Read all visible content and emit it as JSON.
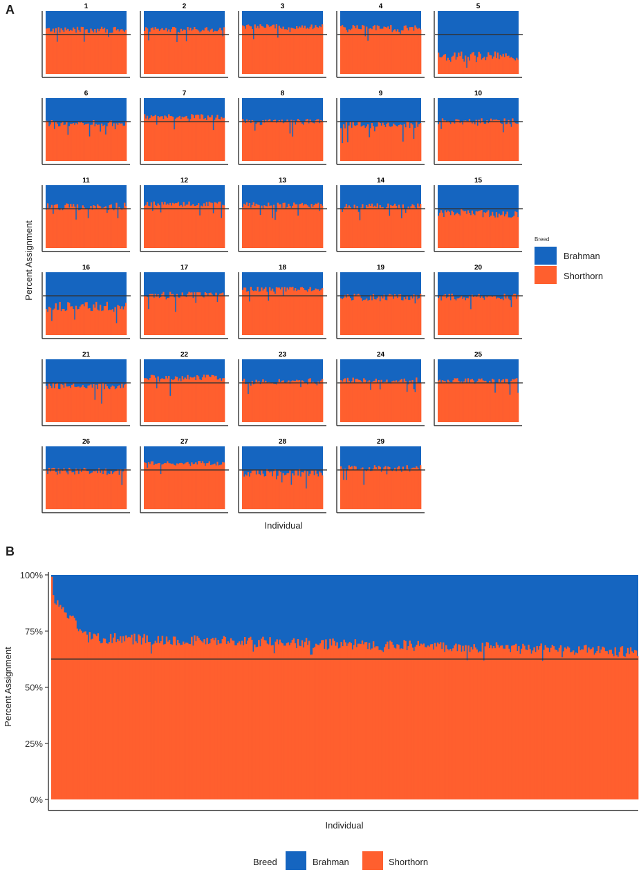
{
  "colors": {
    "brahman": "#1565C0",
    "shorthorn": "#FF5F2E",
    "ref_line": "#333333",
    "axis": "#333333"
  },
  "chart_data": [
    {
      "panel": "A",
      "type": "bar",
      "stacked": true,
      "faceted": true,
      "xlabel": "Individual",
      "ylabel": "Percent Assignment",
      "reference_line": 0.625,
      "legend": {
        "title": "Breed",
        "entries": [
          "Brahman",
          "Shorthorn"
        ],
        "position": "right"
      },
      "facets": [
        {
          "label": "1",
          "mean_shorthorn": 0.7,
          "spread": 0.05
        },
        {
          "label": "2",
          "mean_shorthorn": 0.7,
          "spread": 0.05
        },
        {
          "label": "3",
          "mean_shorthorn": 0.75,
          "spread": 0.04
        },
        {
          "label": "4",
          "mean_shorthorn": 0.72,
          "spread": 0.06
        },
        {
          "label": "5",
          "mean_shorthorn": 0.28,
          "spread": 0.08
        },
        {
          "label": "6",
          "mean_shorthorn": 0.6,
          "spread": 0.05
        },
        {
          "label": "7",
          "mean_shorthorn": 0.7,
          "spread": 0.05
        },
        {
          "label": "8",
          "mean_shorthorn": 0.62,
          "spread": 0.05
        },
        {
          "label": "9",
          "mean_shorthorn": 0.58,
          "spread": 0.06
        },
        {
          "label": "10",
          "mean_shorthorn": 0.63,
          "spread": 0.05
        },
        {
          "label": "11",
          "mean_shorthorn": 0.66,
          "spread": 0.06
        },
        {
          "label": "12",
          "mean_shorthorn": 0.7,
          "spread": 0.04
        },
        {
          "label": "13",
          "mean_shorthorn": 0.68,
          "spread": 0.05
        },
        {
          "label": "14",
          "mean_shorthorn": 0.66,
          "spread": 0.05
        },
        {
          "label": "15",
          "mean_shorthorn": 0.55,
          "spread": 0.07
        },
        {
          "label": "16",
          "mean_shorthorn": 0.45,
          "spread": 0.08
        },
        {
          "label": "17",
          "mean_shorthorn": 0.64,
          "spread": 0.05
        },
        {
          "label": "18",
          "mean_shorthorn": 0.73,
          "spread": 0.04
        },
        {
          "label": "19",
          "mean_shorthorn": 0.6,
          "spread": 0.06
        },
        {
          "label": "20",
          "mean_shorthorn": 0.6,
          "spread": 0.06
        },
        {
          "label": "21",
          "mean_shorthorn": 0.58,
          "spread": 0.06
        },
        {
          "label": "22",
          "mean_shorthorn": 0.7,
          "spread": 0.06
        },
        {
          "label": "23",
          "mean_shorthorn": 0.65,
          "spread": 0.05
        },
        {
          "label": "24",
          "mean_shorthorn": 0.66,
          "spread": 0.05
        },
        {
          "label": "25",
          "mean_shorthorn": 0.65,
          "spread": 0.05
        },
        {
          "label": "26",
          "mean_shorthorn": 0.6,
          "spread": 0.06
        },
        {
          "label": "27",
          "mean_shorthorn": 0.73,
          "spread": 0.04
        },
        {
          "label": "28",
          "mean_shorthorn": 0.58,
          "spread": 0.06
        },
        {
          "label": "29",
          "mean_shorthorn": 0.65,
          "spread": 0.06
        }
      ]
    },
    {
      "panel": "B",
      "type": "bar",
      "stacked": true,
      "xlabel": "Individual",
      "ylabel": "Percent Assignment",
      "ylim": [
        0,
        1
      ],
      "yticks": [
        0,
        0.25,
        0.5,
        0.75,
        1.0
      ],
      "ytick_labels": [
        "0%",
        "25%",
        "50%",
        "75%",
        "100%"
      ],
      "reference_line": 0.625,
      "legend": {
        "title": "Breed",
        "entries": [
          "Brahman",
          "Shorthorn"
        ],
        "position": "bottom"
      },
      "series": [
        {
          "name": "Shorthorn",
          "trend": {
            "start": 0.9,
            "plateau": 0.72,
            "end": 0.66
          }
        },
        {
          "name": "Brahman",
          "complement_of": "Shorthorn"
        }
      ]
    }
  ]
}
